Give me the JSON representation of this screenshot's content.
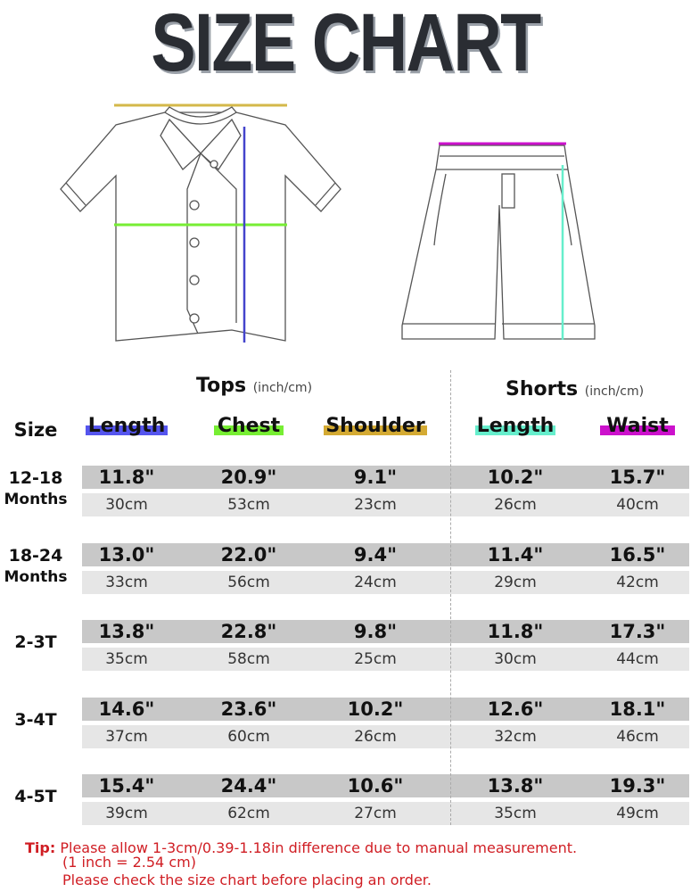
{
  "title": "SIZE CHART",
  "tops": {
    "label": "Tops",
    "unit": "(inch/cm)"
  },
  "shorts": {
    "label": "Shorts",
    "unit": "(inch/cm)"
  },
  "size_header": "Size",
  "columns": [
    {
      "label": "Length",
      "color": "#5555ee"
    },
    {
      "label": "Chest",
      "color": "#77ee33"
    },
    {
      "label": "Shoulder",
      "color": "#d4aa33"
    },
    {
      "label": "Length",
      "color": "#66eecc"
    },
    {
      "label": "Waist",
      "color": "#cc11cc"
    }
  ],
  "rows": [
    {
      "size": [
        "12-18",
        "Months"
      ],
      "inch": [
        "11.8\"",
        "20.9\"",
        "9.1\"",
        "10.2\"",
        "15.7\""
      ],
      "cm": [
        "30cm",
        "53cm",
        "23cm",
        "26cm",
        "40cm"
      ]
    },
    {
      "size": [
        "18-24",
        "Months"
      ],
      "inch": [
        "13.0\"",
        "22.0\"",
        "9.4\"",
        "11.4\"",
        "16.5\""
      ],
      "cm": [
        "33cm",
        "56cm",
        "24cm",
        "29cm",
        "42cm"
      ]
    },
    {
      "size": [
        "2-3T"
      ],
      "inch": [
        "13.8\"",
        "22.8\"",
        "9.8\"",
        "11.8\"",
        "17.3\""
      ],
      "cm": [
        "35cm",
        "58cm",
        "25cm",
        "30cm",
        "44cm"
      ]
    },
    {
      "size": [
        "3-4T"
      ],
      "inch": [
        "14.6\"",
        "23.6\"",
        "10.2\"",
        "12.6\"",
        "18.1\""
      ],
      "cm": [
        "37cm",
        "60cm",
        "26cm",
        "32cm",
        "46cm"
      ]
    },
    {
      "size": [
        "4-5T"
      ],
      "inch": [
        "15.4\"",
        "24.4\"",
        "10.6\"",
        "13.8\"",
        "19.3\""
      ],
      "cm": [
        "39cm",
        "62cm",
        "27cm",
        "35cm",
        "49cm"
      ]
    }
  ],
  "tip": {
    "label": "Tip:",
    "line1": "Please allow 1-3cm/0.39-1.18in difference due to manual measurement.",
    "line2": "(1 inch = 2.54 cm)",
    "line3": "Please check the size chart before placing an order."
  }
}
